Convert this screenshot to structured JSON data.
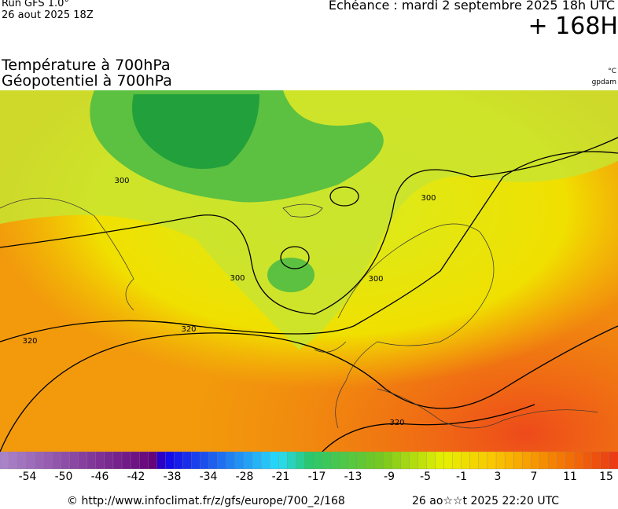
{
  "header": {
    "run": "Run GFS 1.0°",
    "date": "26 aout 2025 18Z",
    "echeance": "Echéance : mardi 2 septembre 2025 18h UTC",
    "offset": "+ 168H",
    "title_1": "Température à 700hPa",
    "title_2": "Géopotentiel à 700hPa",
    "unit": "°C",
    "unit_2": "gpdam"
  },
  "map": {
    "contour_labels": [
      "300",
      "300",
      "300",
      "300",
      "320",
      "320",
      "320"
    ]
  },
  "colorbar": {
    "labels": [
      "-54",
      "-50",
      "-46",
      "-42",
      "-38",
      "-34",
      "-28",
      "-21",
      "-17",
      "-13",
      "-9",
      "-5",
      "-1",
      "3",
      "7",
      "11",
      "15"
    ]
  },
  "footer": {
    "url": "© http://www.infoclimat.fr/z/gfs/europe/700_2/168",
    "timestamp": "26 ao☆☆t 2025 22:20 UTC"
  }
}
